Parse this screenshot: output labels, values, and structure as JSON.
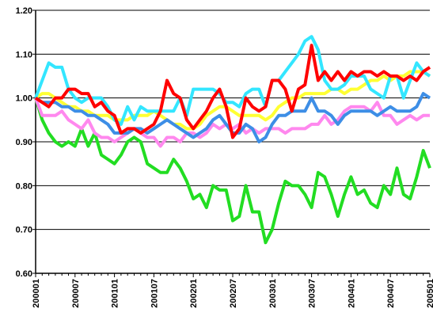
{
  "chart_data": {
    "type": "line",
    "categories": [
      "200001",
      null,
      null,
      null,
      null,
      null,
      "200007",
      null,
      null,
      null,
      null,
      null,
      "200101",
      null,
      null,
      null,
      null,
      null,
      "200107",
      null,
      null,
      null,
      null,
      null,
      "200201",
      null,
      null,
      null,
      null,
      null,
      "200207",
      null,
      null,
      null,
      null,
      null,
      "200301",
      null,
      null,
      null,
      null,
      null,
      "200307",
      null,
      null,
      null,
      null,
      null,
      "200401",
      null,
      null,
      null,
      null,
      null,
      "200407",
      null,
      null,
      null,
      null,
      null,
      "200501"
    ],
    "series": [
      {
        "color": "#22dd22",
        "values": [
          1.0,
          0.95,
          0.92,
          0.9,
          0.89,
          0.9,
          0.89,
          0.93,
          0.89,
          0.92,
          0.87,
          0.86,
          0.85,
          0.87,
          0.9,
          0.91,
          0.9,
          0.85,
          0.84,
          0.83,
          0.83,
          0.86,
          0.84,
          0.81,
          0.77,
          0.78,
          0.75,
          0.8,
          0.79,
          0.79,
          0.72,
          0.73,
          0.8,
          0.74,
          0.74,
          0.67,
          0.7,
          0.76,
          0.81,
          0.8,
          0.8,
          0.78,
          0.75,
          0.83,
          0.82,
          0.78,
          0.73,
          0.78,
          0.82,
          0.78,
          0.79,
          0.76,
          0.75,
          0.8,
          0.78,
          0.84,
          0.78,
          0.77,
          0.82,
          0.88,
          0.84
        ]
      },
      {
        "color": "#ff88ee",
        "values": [
          1.0,
          0.96,
          0.96,
          0.96,
          0.97,
          0.95,
          0.94,
          0.93,
          0.95,
          0.92,
          0.91,
          0.91,
          0.9,
          0.91,
          0.92,
          0.93,
          0.92,
          0.91,
          0.91,
          0.89,
          0.91,
          0.91,
          0.9,
          0.92,
          0.92,
          0.91,
          0.92,
          0.94,
          0.93,
          0.94,
          0.93,
          0.94,
          0.92,
          0.93,
          0.92,
          0.93,
          0.93,
          0.93,
          0.92,
          0.93,
          0.93,
          0.93,
          0.94,
          0.94,
          0.96,
          0.94,
          0.95,
          0.97,
          0.98,
          0.98,
          0.98,
          0.97,
          0.99,
          0.96,
          0.96,
          0.94,
          0.95,
          0.96,
          0.95,
          0.96,
          0.96
        ]
      },
      {
        "color": "#ffff33",
        "values": [
          1.0,
          1.01,
          1.01,
          1.0,
          0.99,
          0.98,
          0.98,
          0.97,
          0.97,
          0.96,
          0.96,
          0.96,
          0.95,
          0.95,
          0.95,
          0.96,
          0.96,
          0.96,
          0.97,
          0.96,
          0.95,
          0.94,
          0.94,
          0.93,
          0.93,
          0.94,
          0.96,
          0.97,
          0.98,
          0.98,
          0.97,
          0.96,
          0.96,
          0.96,
          0.96,
          0.95,
          0.96,
          0.98,
          0.99,
          1.0,
          1.0,
          1.01,
          1.01,
          1.01,
          1.01,
          1.02,
          1.02,
          1.01,
          1.02,
          1.02,
          1.03,
          1.04,
          1.04,
          1.05,
          1.04,
          1.05,
          1.05,
          1.06,
          1.06,
          1.06,
          1.05
        ]
      },
      {
        "color": "#3d8ee6",
        "values": [
          1.0,
          0.99,
          0.99,
          0.99,
          0.98,
          0.98,
          0.97,
          0.97,
          0.96,
          0.96,
          0.95,
          0.94,
          0.92,
          0.92,
          0.92,
          0.93,
          0.93,
          0.92,
          0.93,
          0.94,
          0.95,
          0.94,
          0.93,
          0.92,
          0.91,
          0.92,
          0.93,
          0.95,
          0.96,
          0.94,
          0.92,
          0.92,
          0.94,
          0.93,
          0.9,
          0.91,
          0.94,
          0.96,
          0.96,
          0.97,
          0.97,
          0.97,
          1.0,
          0.97,
          0.97,
          0.96,
          0.94,
          0.96,
          0.97,
          0.97,
          0.97,
          0.97,
          0.96,
          0.97,
          0.98,
          0.97,
          0.97,
          0.97,
          0.98,
          1.01,
          1.0
        ]
      },
      {
        "color": "#33e6ff",
        "values": [
          1.0,
          1.04,
          1.08,
          1.07,
          1.07,
          1.02,
          1.0,
          0.99,
          1.0,
          1.0,
          1.0,
          0.98,
          0.95,
          0.94,
          0.98,
          0.95,
          0.98,
          0.97,
          0.97,
          0.97,
          0.97,
          0.97,
          1.0,
          0.96,
          1.02,
          1.02,
          1.02,
          1.02,
          1.01,
          0.99,
          0.99,
          0.98,
          1.01,
          1.02,
          1.02,
          0.98,
          1.04,
          1.04,
          1.06,
          1.08,
          1.1,
          1.13,
          1.14,
          1.11,
          1.04,
          1.02,
          1.02,
          1.03,
          1.05,
          1.05,
          1.05,
          1.02,
          1.01,
          1.0,
          1.05,
          1.05,
          1.0,
          1.04,
          1.08,
          1.06,
          1.05
        ]
      },
      {
        "color": "#ff0000",
        "values": [
          1.0,
          0.99,
          0.98,
          1.0,
          1.0,
          1.02,
          1.02,
          1.01,
          1.01,
          0.98,
          0.99,
          0.97,
          0.96,
          0.92,
          0.93,
          0.93,
          0.92,
          0.93,
          0.94,
          0.97,
          1.04,
          1.01,
          1.0,
          0.95,
          0.93,
          0.95,
          0.97,
          1.0,
          1.02,
          0.98,
          0.91,
          0.93,
          1.0,
          0.98,
          0.97,
          0.98,
          1.04,
          1.04,
          1.02,
          0.97,
          1.02,
          1.03,
          1.12,
          1.04,
          1.06,
          1.04,
          1.06,
          1.04,
          1.06,
          1.05,
          1.06,
          1.06,
          1.05,
          1.06,
          1.05,
          1.05,
          1.04,
          1.05,
          1.04,
          1.06,
          1.07
        ]
      }
    ],
    "ylim": [
      0.6,
      1.2
    ],
    "yticks": [
      {
        "value": 0.6,
        "label": "0.60"
      },
      {
        "value": 0.7,
        "label": "0.70"
      },
      {
        "value": 0.8,
        "label": "0.80"
      },
      {
        "value": 0.9,
        "label": "0.90"
      },
      {
        "value": 1.0,
        "label": "1.00"
      },
      {
        "value": 1.1,
        "label": "1.10"
      },
      {
        "value": 1.2,
        "label": "1.20"
      }
    ],
    "grid": true
  }
}
